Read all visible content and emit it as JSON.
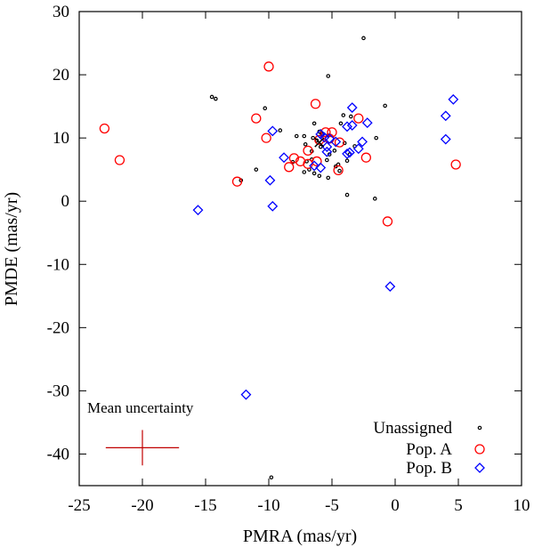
{
  "chart_data": {
    "type": "scatter",
    "xlabel": "PMRA (mas/yr)",
    "ylabel": "PMDE (mas/yr)",
    "xlim": [
      -25,
      10
    ],
    "ylim": [
      -45,
      30
    ],
    "xticks": [
      -25,
      -20,
      -15,
      -10,
      -5,
      0,
      5,
      10
    ],
    "yticks": [
      -40,
      -30,
      -20,
      -10,
      0,
      10,
      20,
      30
    ],
    "grid": false,
    "legend_position": "bottom-right",
    "colors": {
      "unassigned": "#000000",
      "popA": "#ff0000",
      "popB": "#0000ff",
      "cross": "#000000",
      "uncertainty": "#c00000"
    },
    "series": [
      {
        "name": "Unassigned",
        "marker": "small-circle",
        "points": [
          [
            -2.5,
            25.8
          ],
          [
            -5.3,
            19.8
          ],
          [
            -14.5,
            16.5
          ],
          [
            -14.2,
            16.2
          ],
          [
            -0.8,
            15.1
          ],
          [
            -10.3,
            14.7
          ],
          [
            -3.5,
            13.4
          ],
          [
            -4.1,
            13.6
          ],
          [
            -6.4,
            12.3
          ],
          [
            -4.3,
            12.3
          ],
          [
            -9.1,
            11.2
          ],
          [
            -6.0,
            11.0
          ],
          [
            -5.8,
            10.6
          ],
          [
            -5.3,
            10.4
          ],
          [
            -7.8,
            10.3
          ],
          [
            -7.2,
            10.3
          ],
          [
            -6.5,
            10.0
          ],
          [
            -1.5,
            10.0
          ],
          [
            -6.2,
            9.6
          ],
          [
            -4.0,
            9.2
          ],
          [
            -7.1,
            9.0
          ],
          [
            -5.9,
            8.6
          ],
          [
            -3.2,
            8.7
          ],
          [
            -4.8,
            8.0
          ],
          [
            -6.6,
            7.9
          ],
          [
            -3.6,
            7.4
          ],
          [
            -5.2,
            7.4
          ],
          [
            -6.6,
            6.6
          ],
          [
            -5.4,
            6.5
          ],
          [
            -7.0,
            6.3
          ],
          [
            -3.8,
            6.4
          ],
          [
            -8.1,
            6.2
          ],
          [
            -4.5,
            5.8
          ],
          [
            -4.7,
            5.5
          ],
          [
            -6.8,
            5.0
          ],
          [
            -11.0,
            5.0
          ],
          [
            -4.4,
            4.8
          ],
          [
            -7.2,
            4.6
          ],
          [
            -6.4,
            4.4
          ],
          [
            -6.0,
            4.0
          ],
          [
            -5.3,
            3.7
          ],
          [
            -12.2,
            3.3
          ],
          [
            -3.8,
            1.0
          ],
          [
            -1.6,
            0.4
          ],
          [
            -9.8,
            -43.7
          ]
        ]
      },
      {
        "name": "Pop. A",
        "marker": "circle",
        "points": [
          [
            -10.0,
            21.3
          ],
          [
            -6.3,
            15.4
          ],
          [
            -23.0,
            11.5
          ],
          [
            -11.0,
            13.1
          ],
          [
            -2.9,
            13.1
          ],
          [
            -10.2,
            10.0
          ],
          [
            -5.5,
            10.9
          ],
          [
            -5.0,
            10.9
          ],
          [
            -6.0,
            9.7
          ],
          [
            -5.2,
            9.9
          ],
          [
            -4.4,
            9.3
          ],
          [
            -6.9,
            8.0
          ],
          [
            -21.8,
            6.5
          ],
          [
            -8.0,
            6.8
          ],
          [
            -7.5,
            6.3
          ],
          [
            -6.2,
            6.3
          ],
          [
            -6.9,
            5.9
          ],
          [
            -2.3,
            6.9
          ],
          [
            -8.4,
            5.4
          ],
          [
            -4.5,
            4.9
          ],
          [
            -12.5,
            3.1
          ],
          [
            4.8,
            5.8
          ],
          [
            -0.6,
            -3.2
          ]
        ]
      },
      {
        "name": "Pop. B",
        "marker": "diamond",
        "points": [
          [
            4.6,
            16.1
          ],
          [
            -3.4,
            14.8
          ],
          [
            4.0,
            13.5
          ],
          [
            -2.2,
            12.4
          ],
          [
            -3.4,
            12.0
          ],
          [
            -3.8,
            11.8
          ],
          [
            -9.7,
            11.1
          ],
          [
            -5.9,
            10.6
          ],
          [
            -5.6,
            10.1
          ],
          [
            -5.2,
            9.9
          ],
          [
            4.0,
            9.8
          ],
          [
            -4.7,
            9.4
          ],
          [
            -2.6,
            9.4
          ],
          [
            -5.4,
            8.6
          ],
          [
            -2.9,
            8.3
          ],
          [
            -5.4,
            7.8
          ],
          [
            -3.6,
            7.7
          ],
          [
            -3.8,
            7.5
          ],
          [
            -8.8,
            6.9
          ],
          [
            -6.4,
            5.6
          ],
          [
            -5.9,
            5.3
          ],
          [
            -9.9,
            3.3
          ],
          [
            -15.6,
            -1.4
          ],
          [
            -9.7,
            -0.8
          ],
          [
            -0.4,
            -13.5
          ],
          [
            -11.8,
            -30.6
          ]
        ]
      }
    ],
    "annotations": {
      "mean_uncertainty_label": "Mean uncertainty",
      "mean_uncertainty_center": [
        -20,
        -39
      ],
      "mean_uncertainty_error": [
        2.9,
        2.8
      ],
      "mean_marker": [
        -6.0,
        9.3
      ]
    }
  }
}
